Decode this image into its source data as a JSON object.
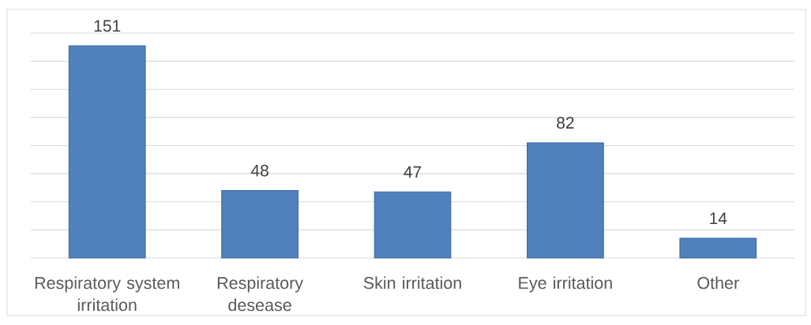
{
  "chart_data": {
    "type": "bar",
    "categories": [
      "Respiratory system irritation",
      "Respiratory desease",
      "Skin irritation",
      "Eye irritation",
      "Other"
    ],
    "values": [
      151,
      48,
      47,
      82,
      14
    ],
    "color": "#4f81bd",
    "ylim": [
      0,
      160
    ],
    "yticks": [
      {
        "value": 0,
        "label": null
      },
      {
        "value": 20,
        "label": null
      },
      {
        "value": 40,
        "label": null
      },
      {
        "value": 60,
        "label": null
      },
      {
        "value": 80,
        "label": null
      },
      {
        "value": 100,
        "label": null
      },
      {
        "value": 120,
        "label": null
      },
      {
        "value": 140,
        "label": null
      },
      {
        "value": 160,
        "label": null
      }
    ],
    "grid": "y",
    "tick_labels": "x",
    "data_labels": true
  }
}
